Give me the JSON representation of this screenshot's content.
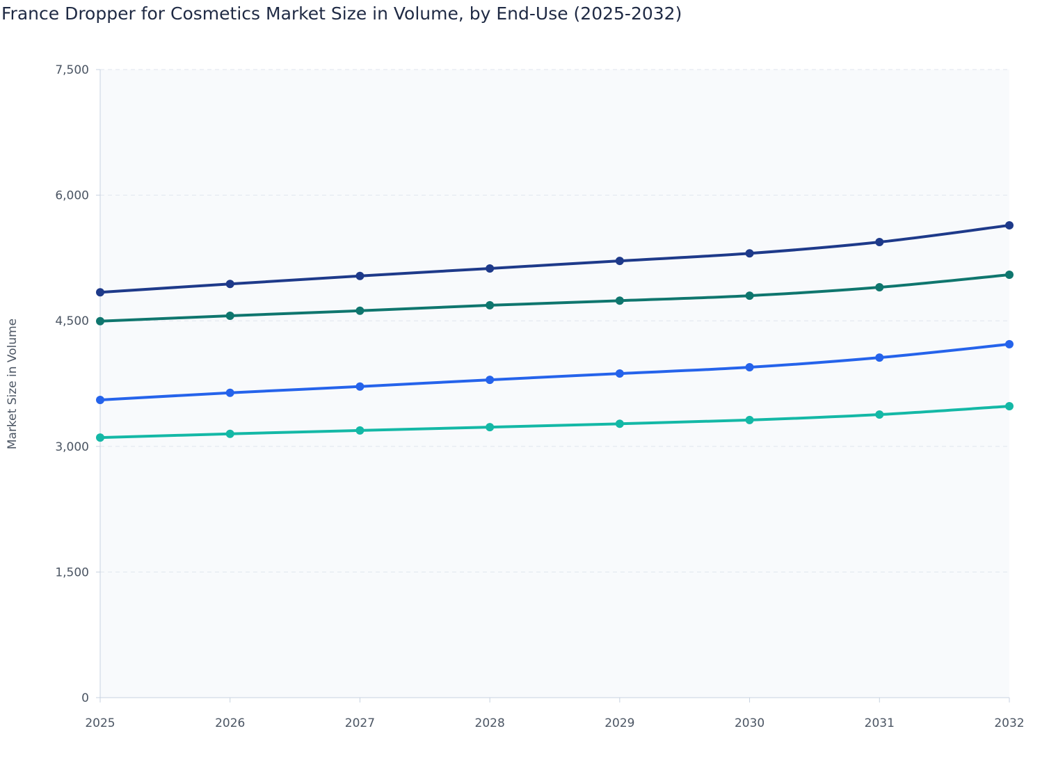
{
  "chart_data": {
    "type": "line",
    "title": "France Dropper for Cosmetics Market Size in Volume, by End-Use (2025-2032)",
    "y_label": "Market Size in Volume",
    "categories": [
      "2025",
      "2026",
      "2027",
      "2028",
      "2029",
      "2030",
      "2031",
      "2032"
    ],
    "series": [
      {
        "color": "#1e3a8a",
        "values": [
          4840,
          4940,
          5035,
          5125,
          5215,
          5305,
          5440,
          5640
        ]
      },
      {
        "color": "#0f766e",
        "values": [
          4495,
          4560,
          4620,
          4685,
          4740,
          4800,
          4900,
          5050
        ]
      },
      {
        "color": "#2563eb",
        "values": [
          3555,
          3640,
          3715,
          3795,
          3870,
          3945,
          4060,
          4220
        ]
      },
      {
        "color": "#14b8a6",
        "values": [
          3105,
          3150,
          3190,
          3230,
          3270,
          3315,
          3380,
          3480
        ]
      }
    ],
    "ylim": [
      0,
      7500
    ],
    "yticks": [
      0,
      {
        "value": 1500,
        "label": "1,500"
      },
      {
        "value": 3000,
        "label": "3,000"
      },
      {
        "value": 4500,
        "label": "4,500"
      },
      {
        "value": 6000,
        "label": "6,000"
      },
      {
        "value": 7500,
        "label": "7,500"
      }
    ],
    "grid": true
  }
}
